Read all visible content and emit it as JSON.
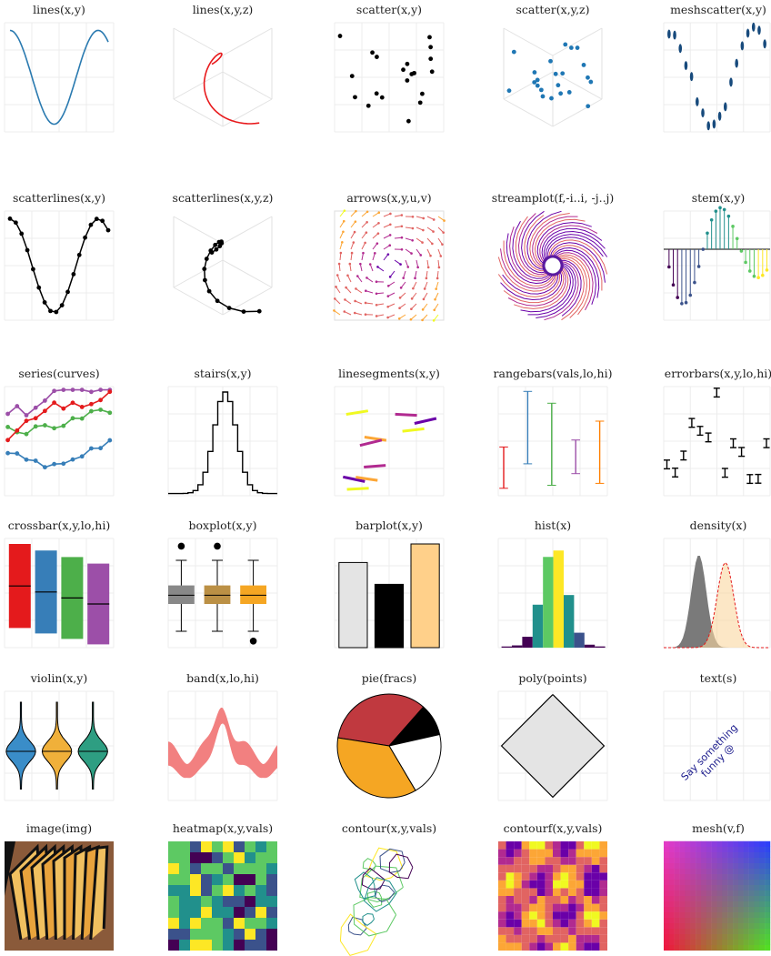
{
  "panels": [
    {
      "title": "lines(x,y)"
    },
    {
      "title": "lines(x,y,z)"
    },
    {
      "title": "scatter(x,y)"
    },
    {
      "title": "scatter(x,y,z)"
    },
    {
      "title": "meshscatter(x,y)"
    },
    {
      "title": "scatterlines(x,y)"
    },
    {
      "title": "scatterlines(x,y,z)"
    },
    {
      "title": "arrows(x,y,u,v)"
    },
    {
      "title": "streamplot(f,-i..i, -j..j)"
    },
    {
      "title": "stem(x,y)"
    },
    {
      "title": "series(curves)"
    },
    {
      "title": "stairs(x,y)"
    },
    {
      "title": "linesegments(x,y)"
    },
    {
      "title": "rangebars(vals,lo,hi)"
    },
    {
      "title": "errorbars(x,y,lo,hi)"
    },
    {
      "title": "crossbar(x,y,lo,hi)"
    },
    {
      "title": "boxplot(x,y)"
    },
    {
      "title": "barplot(x,y)"
    },
    {
      "title": "hist(x)"
    },
    {
      "title": "density(x)"
    },
    {
      "title": "violin(x,y)"
    },
    {
      "title": "band(x,lo,hi)"
    },
    {
      "title": "pie(fracs)"
    },
    {
      "title": "poly(points)"
    },
    {
      "title": "text(s)"
    },
    {
      "title": "image(img)"
    },
    {
      "title": "heatmap(x,y,vals)"
    },
    {
      "title": "contour(x,y,vals)"
    },
    {
      "title": "contourf(x,y,vals)"
    },
    {
      "title": "mesh(v,f)"
    }
  ],
  "annotation": [
    "Say something",
    "funny @"
  ]
}
